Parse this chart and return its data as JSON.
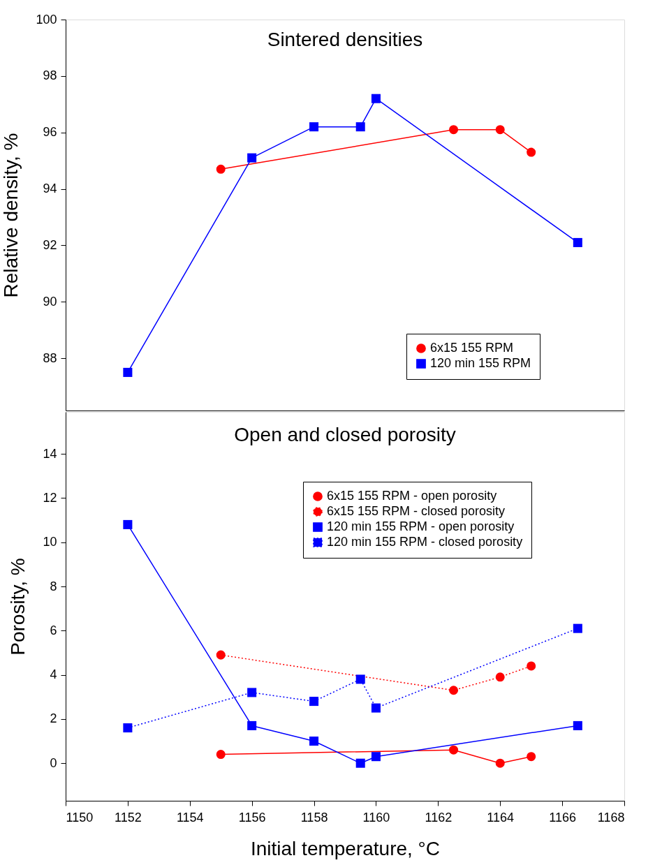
{
  "chart_data": [
    {
      "type": "line",
      "title": "Sintered densities",
      "ylabel": "Relative density, %",
      "xlim": [
        1150,
        1168
      ],
      "ylim": [
        86.15,
        100
      ],
      "yticks": [
        88,
        90,
        92,
        94,
        96,
        98,
        100
      ],
      "tick_labels": "y",
      "grid": false,
      "legend": "bottom right",
      "series": [
        {
          "name": "6x15 155 RPM",
          "color": "#ff0000",
          "marker": "circle",
          "line_style": "solid",
          "x": [
            1155,
            1162.5,
            1164,
            1165
          ],
          "values": [
            94.7,
            96.1,
            96.1,
            95.3
          ]
        },
        {
          "name": "120 min 155 RPM",
          "color": "#0000ff",
          "marker": "square",
          "line_style": "solid",
          "x": [
            1152,
            1156,
            1158,
            1159.5,
            1160,
            1166.5
          ],
          "values": [
            87.5,
            95.1,
            96.2,
            96.2,
            97.2,
            92.1
          ]
        }
      ]
    },
    {
      "type": "line",
      "title": "Open and closed porosity",
      "xlabel": "Initial temperature, °C",
      "ylabel": "Porosity, %",
      "xlim": [
        1150,
        1168
      ],
      "xticks": [
        1150,
        1152,
        1154,
        1156,
        1158,
        1160,
        1162,
        1164,
        1166,
        1168
      ],
      "ylim": [
        -1.7,
        15.9
      ],
      "yticks": [
        0,
        2,
        4,
        6,
        8,
        10,
        12,
        14
      ],
      "grid": false,
      "legend": "top right",
      "series": [
        {
          "name": "6x15 155 RPM - open porosity",
          "color": "#ff0000",
          "marker": "circle",
          "line_style": "solid",
          "x": [
            1155,
            1162.5,
            1164,
            1165
          ],
          "values": [
            0.4,
            0.6,
            0,
            0.3
          ]
        },
        {
          "name": "6x15 155 RPM - closed porosity",
          "color": "#ff0000",
          "marker": "circle",
          "line_style": "dotted",
          "x": [
            1155,
            1162.5,
            1164,
            1165
          ],
          "values": [
            4.9,
            3.3,
            3.9,
            4.4
          ]
        },
        {
          "name": "120 min 155 RPM - open porosity",
          "color": "#0000ff",
          "marker": "square",
          "line_style": "solid",
          "x": [
            1152,
            1156,
            1158,
            1159.5,
            1160,
            1166.5
          ],
          "values": [
            10.8,
            1.7,
            1.0,
            0,
            0.3,
            1.7
          ]
        },
        {
          "name": "120 min 155 RPM - closed porosity",
          "color": "#0000ff",
          "marker": "square",
          "line_style": "dotted",
          "x": [
            1152,
            1156,
            1158,
            1159.5,
            1160,
            1166.5
          ],
          "values": [
            1.6,
            3.2,
            2.8,
            3.8,
            2.5,
            6.1
          ]
        }
      ]
    }
  ]
}
